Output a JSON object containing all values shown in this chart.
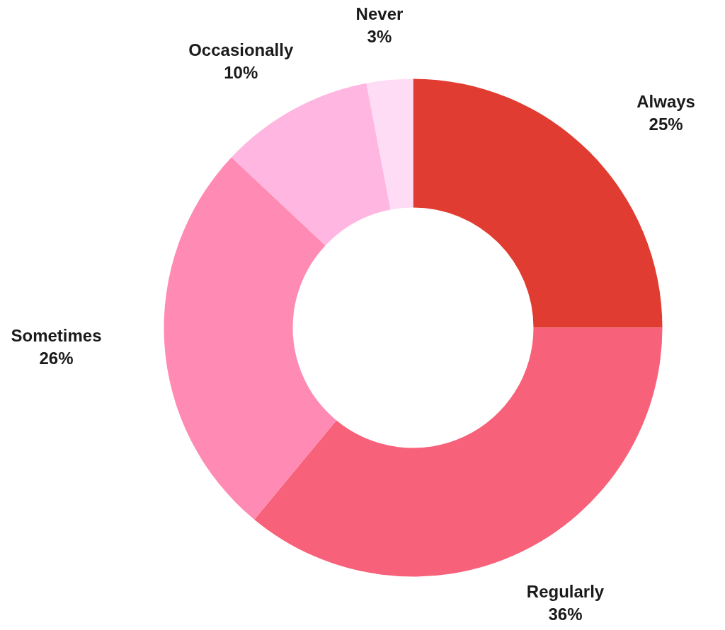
{
  "chart_data": {
    "type": "donut",
    "categories": [
      "Always",
      "Regularly",
      "Sometimes",
      "Occasionally",
      "Never"
    ],
    "values": [
      25,
      36,
      26,
      10,
      3
    ],
    "colors": [
      "#e03c31",
      "#f7617a",
      "#ff8ab3",
      "#ffb6e0",
      "#ffdcf5"
    ],
    "value_labels": [
      "25%",
      "36%",
      "26%",
      "10%",
      "3%"
    ]
  }
}
